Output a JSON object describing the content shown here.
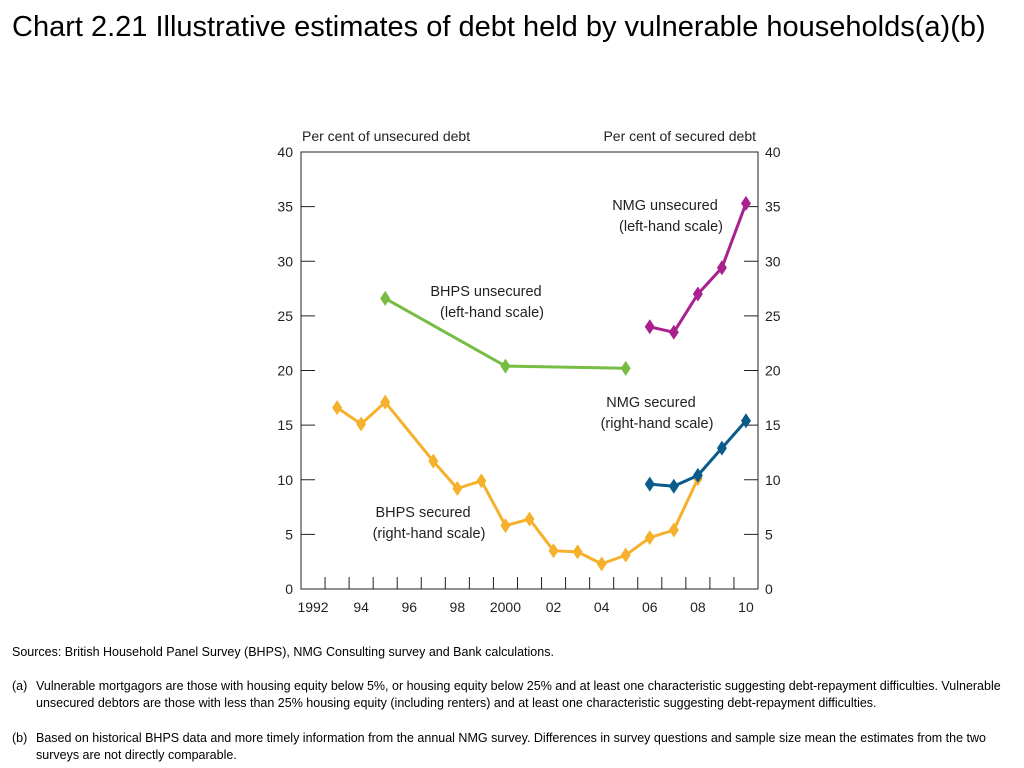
{
  "title": "Chart 2.21  Illustrative estimates of debt held by vulnerable households(a)(b)",
  "sources": "Sources:  British Household Panel Survey (BHPS), NMG Consulting survey and Bank calculations.",
  "notes": [
    {
      "marker": "(a)",
      "text": "Vulnerable mortgagors are those with housing equity below 5%, or housing equity below 25% and at least one characteristic suggesting debt-repayment difficulties.  Vulnerable unsecured debtors are those with less than 25% housing equity (including renters) and at least one characteristic suggesting debt-repayment difficulties."
    },
    {
      "marker": "(b)",
      "text": "Based on historical BHPS data and more timely information from the annual NMG survey.  Differences in survey questions and sample size mean the estimates from the two surveys are not directly comparable."
    }
  ],
  "chart_data": {
    "type": "line",
    "title": "",
    "left_axis_label": "Per cent of unsecured debt",
    "right_axis_label": "Per cent of secured debt",
    "ylim": [
      0,
      40
    ],
    "y_ticks": [
      "0",
      "5",
      "10",
      "15",
      "20",
      "25",
      "30",
      "35",
      "40"
    ],
    "xlim": [
      1991.5,
      2010.5
    ],
    "x_tick_labels": [
      {
        "x": 1992,
        "label": "1992"
      },
      {
        "x": 1994,
        "label": "94"
      },
      {
        "x": 1996,
        "label": "96"
      },
      {
        "x": 1998,
        "label": "98"
      },
      {
        "x": 2000,
        "label": "2000"
      },
      {
        "x": 2002,
        "label": "02"
      },
      {
        "x": 2004,
        "label": "04"
      },
      {
        "x": 2006,
        "label": "06"
      },
      {
        "x": 2008,
        "label": "08"
      },
      {
        "x": 2010,
        "label": "10"
      }
    ],
    "grid": false,
    "series": [
      {
        "name": "BHPS unsecured\n(left-hand scale)",
        "color": "#77bc43",
        "x": [
          1995,
          2000,
          2005
        ],
        "y": [
          26.6,
          20.4,
          20.2
        ]
      },
      {
        "name": "BHPS secured\n(right-hand scale)",
        "color": "#f6b12c",
        "x": [
          1993,
          1994,
          1995,
          1997,
          1998,
          1999,
          2000,
          2001,
          2002,
          2003,
          2004,
          2005,
          2006,
          2007,
          2008
        ],
        "y": [
          16.6,
          15.1,
          17.1,
          11.7,
          9.2,
          9.9,
          5.8,
          6.4,
          3.5,
          3.4,
          2.3,
          3.1,
          4.7,
          5.4,
          10.1
        ]
      },
      {
        "name": "NMG unsecured\n(left-hand scale)",
        "color": "#a8218e",
        "x": [
          2006,
          2007,
          2008,
          2009,
          2010
        ],
        "y": [
          24.0,
          23.5,
          27.0,
          29.4,
          35.3
        ]
      },
      {
        "name": "NMG secured\n(right-hand scale)",
        "color": "#0a5a8a",
        "x": [
          2006,
          2007,
          2008,
          2009,
          2010
        ],
        "y": [
          9.6,
          9.4,
          10.4,
          12.9,
          15.4
        ]
      }
    ]
  }
}
